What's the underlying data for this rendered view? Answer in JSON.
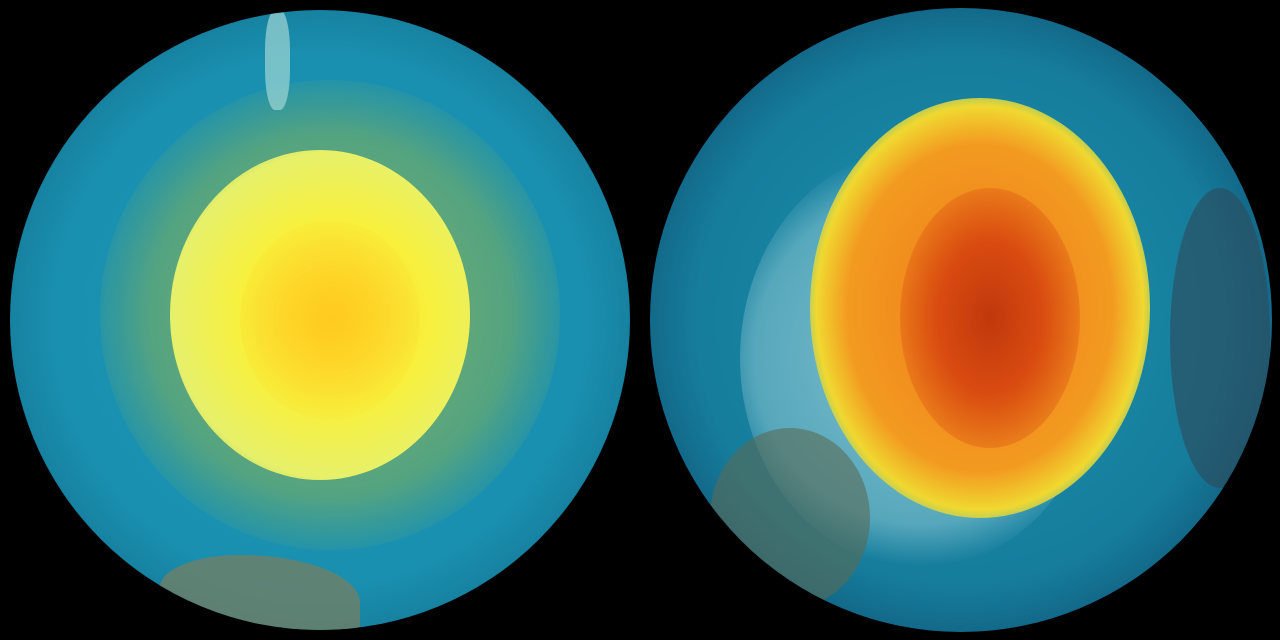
{
  "colors": {
    "background": "#000000",
    "ocean_cyan": "#1a96b8",
    "left_core_yellow": "#f5f03a",
    "left_ring_green": "#8fb84a",
    "right_core_red": "#d84a10",
    "right_core_orange": "#f07a1a",
    "right_ring_yellow": "#f0d830",
    "land_pale": "#a8d8d8",
    "land_brown": "#6a7a5a"
  }
}
